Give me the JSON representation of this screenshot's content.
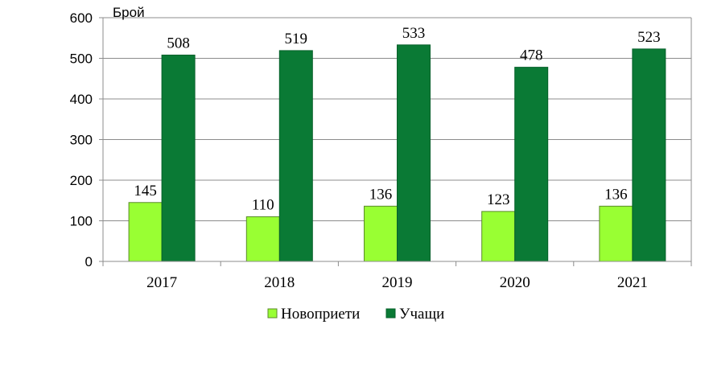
{
  "chart_data": {
    "type": "bar",
    "title": "",
    "ylabel": "Брой",
    "xlabel": "",
    "categories": [
      "2017",
      "2018",
      "2019",
      "2020",
      "2021"
    ],
    "series": [
      {
        "name": "Новоприети",
        "values": [
          145,
          110,
          136,
          123,
          136
        ],
        "color": "#99ff33"
      },
      {
        "name": "Учащи",
        "values": [
          508,
          519,
          533,
          478,
          523
        ],
        "color": "#0a7a35"
      }
    ],
    "ylim": [
      0,
      600
    ],
    "yticks": [
      0,
      100,
      200,
      300,
      400,
      500,
      600
    ],
    "grid": true,
    "legend_position": "bottom",
    "data_labels": true
  }
}
